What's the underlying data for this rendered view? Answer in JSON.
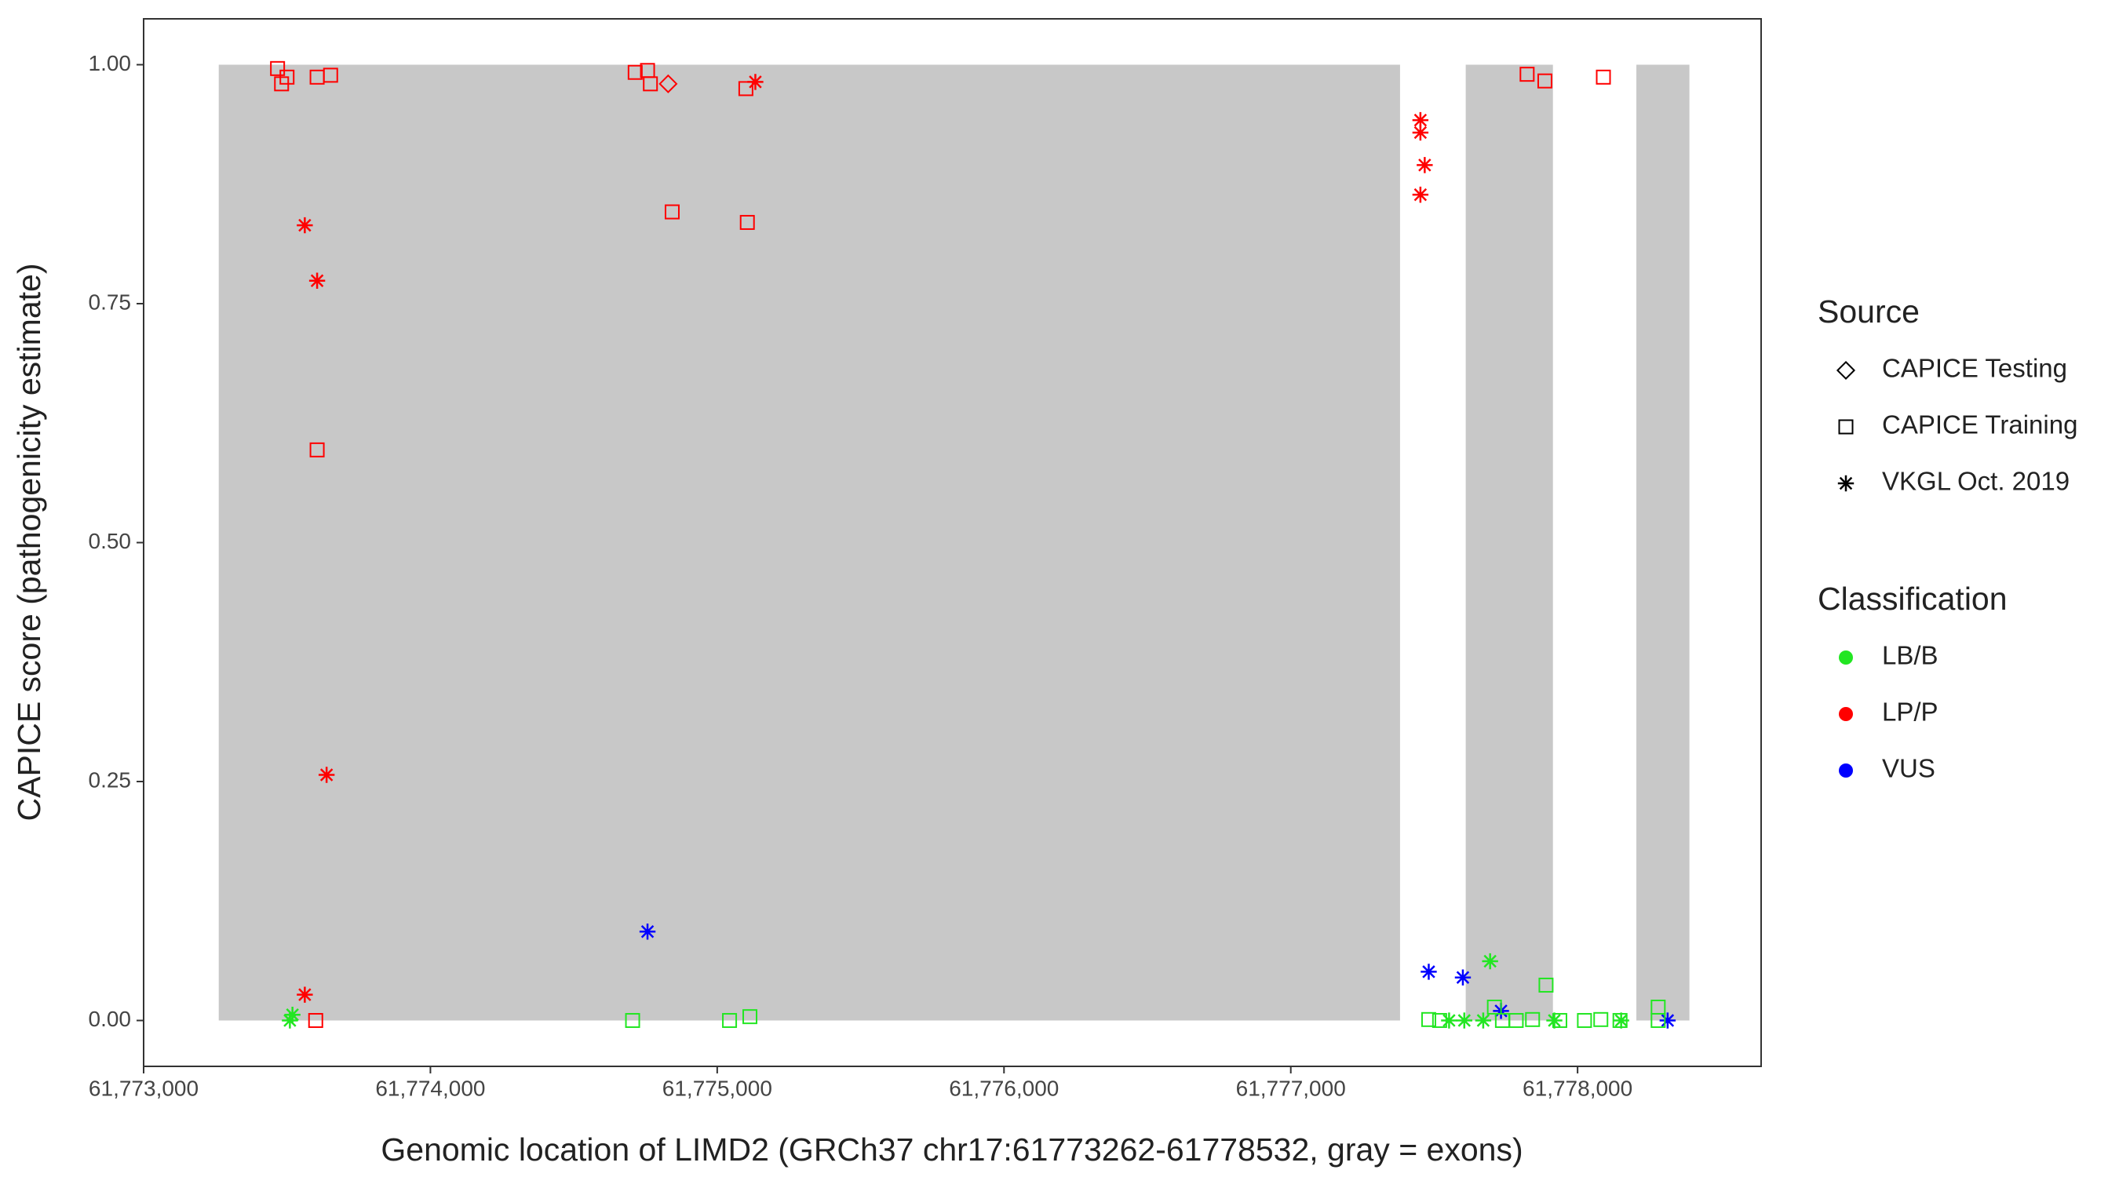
{
  "chart_data": {
    "type": "scatter",
    "xlabel": "Genomic location of LIMD2 (GRCh37 chr17:61773262-61778532, gray = exons)",
    "ylabel": "CAPICE score (pathogenicity estimate)",
    "xlim": [
      61773000,
      61778640
    ],
    "ylim": [
      -0.048,
      1.048
    ],
    "xticks": [
      {
        "value": 61773000,
        "label": "61,773,000"
      },
      {
        "value": 61774000,
        "label": "61,774,000"
      },
      {
        "value": 61775000,
        "label": "61,775,000"
      },
      {
        "value": 61776000,
        "label": "61,776,000"
      },
      {
        "value": 61777000,
        "label": "61,777,000"
      },
      {
        "value": 61778000,
        "label": "61,778,000"
      }
    ],
    "yticks": [
      {
        "value": 0,
        "label": "0.00"
      },
      0.25,
      {
        "value": 0.5,
        "label": "0.50"
      },
      0.75,
      {
        "value": 1,
        "label": "1.00"
      }
    ],
    "grid": false,
    "exon_color": "#c8c8c8",
    "exons": [
      [
        61773262,
        61777381
      ],
      [
        61777610,
        61777914
      ],
      [
        61778205,
        61778390
      ]
    ],
    "exon_ylim": [
      0,
      1
    ],
    "legend": {
      "source": {
        "title": "Source",
        "items": [
          {
            "name": "CAPICE Testing",
            "shape": "diamond"
          },
          {
            "name": "CAPICE Training",
            "shape": "square"
          },
          {
            "name": "VKGL Oct. 2019",
            "shape": "asterisk"
          }
        ]
      },
      "classification": {
        "title": "Classification",
        "items": [
          {
            "name": "LB/B",
            "color": "#22e622"
          },
          {
            "name": "LP/P",
            "color": "#ff0000"
          },
          {
            "name": "VUS",
            "color": "#0000ff"
          }
        ]
      }
    },
    "series": [
      {
        "source": "CAPICE Training",
        "classification": "LP/P",
        "x": [
          61773467,
          61773481,
          61773500,
          61773605,
          61773652,
          61773605,
          61773600,
          61774714,
          61774757,
          61774767,
          61774843,
          61775100,
          61775105,
          61777824,
          61777886,
          61778090
        ],
        "y": [
          0.996,
          0.98,
          0.987,
          0.987,
          0.989,
          0.597,
          0,
          0.992,
          0.994,
          0.98,
          0.846,
          0.975,
          0.835,
          0.99,
          0.983,
          0.987
        ]
      },
      {
        "source": "CAPICE Testing",
        "classification": "LP/P",
        "x": [
          61774829
        ],
        "y": [
          0.98
        ]
      },
      {
        "source": "VKGL Oct. 2019",
        "classification": "LP/P",
        "x": [
          61773562,
          61773605,
          61773638,
          61773562,
          61775133,
          61777452,
          61777452,
          61777467,
          61777452
        ],
        "y": [
          0.832,
          0.774,
          0.257,
          0.027,
          0.982,
          0.942,
          0.929,
          0.895,
          0.864
        ]
      },
      {
        "source": "VKGL Oct. 2019",
        "classification": "VUS",
        "x": [
          61774757,
          61777481,
          61777600,
          61777733,
          61778314
        ],
        "y": [
          0.093,
          0.051,
          0.045,
          0.01,
          0
        ]
      },
      {
        "source": "VKGL Oct. 2019",
        "classification": "LB/B",
        "x": [
          61773510,
          61773519,
          61777695,
          61777552,
          61777605,
          61777671,
          61777919,
          61778152
        ],
        "y": [
          0,
          0.006,
          0.062,
          0,
          0,
          0,
          0,
          0
        ]
      },
      {
        "source": "CAPICE Training",
        "classification": "LB/B",
        "x": [
          61774705,
          61775043,
          61775114,
          61777481,
          61777519,
          61777710,
          61777738,
          61777786,
          61777843,
          61777890,
          61777938,
          61778024,
          61778081,
          61778148,
          61778281,
          61778281
        ],
        "y": [
          0,
          0,
          0.004,
          0.001,
          0,
          0.014,
          0,
          0,
          0.001,
          0.037,
          0,
          0,
          0.001,
          0,
          0.014,
          0
        ]
      }
    ]
  }
}
